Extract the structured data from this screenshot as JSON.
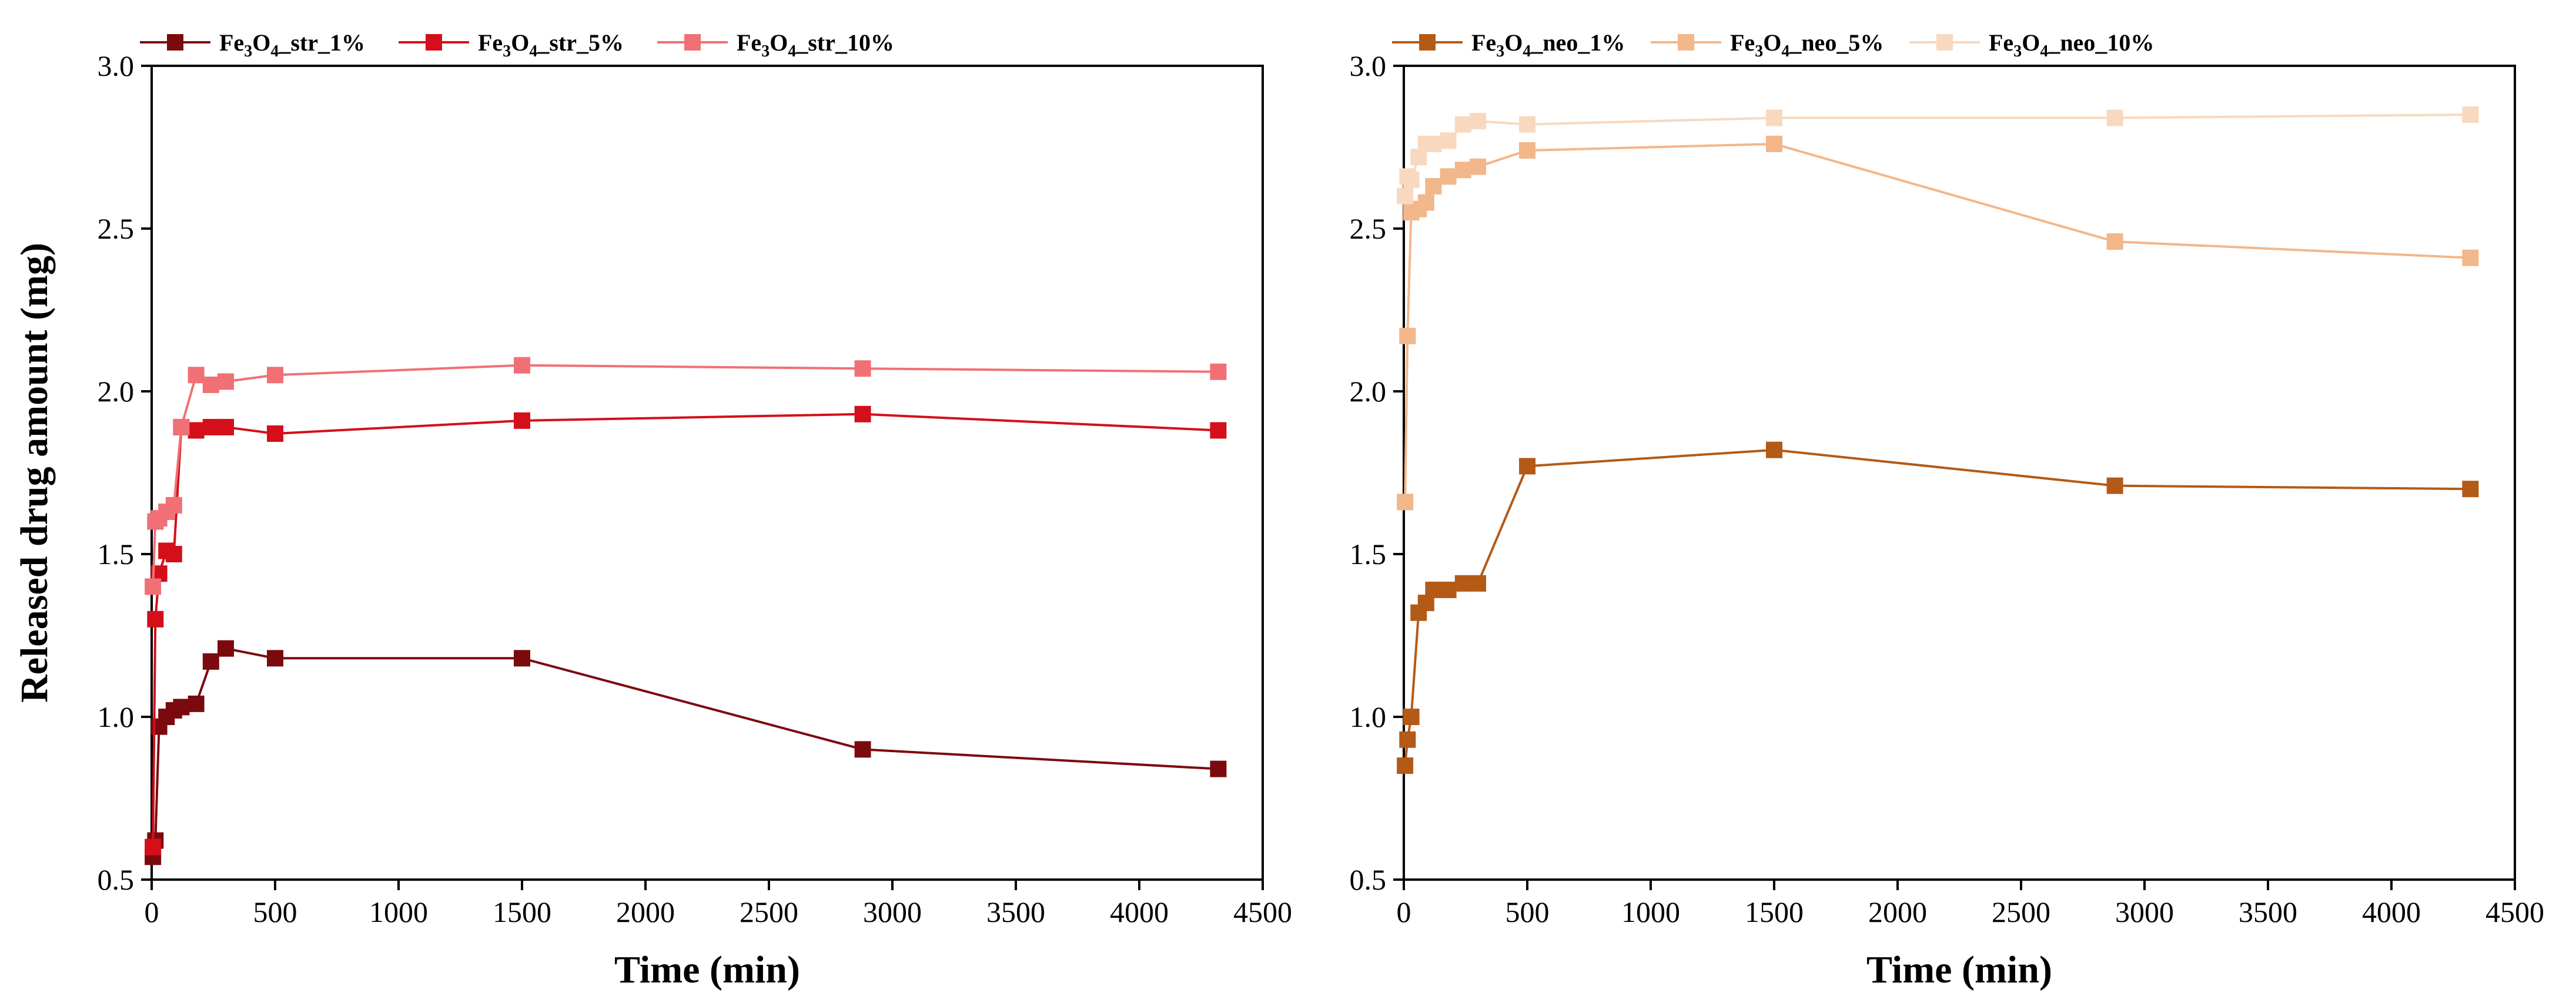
{
  "chart_data": [
    {
      "type": "line",
      "panel": "left",
      "xlabel": "Time (min)",
      "ylabel": "Released drug amount (mg)",
      "xlim": [
        0,
        4500
      ],
      "ylim": [
        0.5,
        3.0
      ],
      "xticks": [
        "0",
        "500",
        "1000",
        "1500",
        "2000",
        "2500",
        "3000",
        "3500",
        "4000",
        "4500"
      ],
      "yticks": [
        "0.5",
        "1.0",
        "1.5",
        "2.0",
        "2.5",
        "3.0"
      ],
      "legend_position": "top",
      "series": [
        {
          "name": "Fe3O4_str_1%",
          "label_main": "Fe",
          "label_sub1": "3",
          "label_mid": "O",
          "label_sub2": "4",
          "label_tail": "_str_1%",
          "color": "#7b0a0f",
          "x": [
            5,
            15,
            30,
            60,
            90,
            120,
            180,
            240,
            300,
            500,
            1500,
            2880,
            4320
          ],
          "y": [
            0.57,
            0.62,
            0.97,
            1.0,
            1.02,
            1.03,
            1.04,
            1.17,
            1.21,
            1.18,
            1.18,
            0.9,
            0.84
          ]
        },
        {
          "name": "Fe3O4_str_5%",
          "label_main": "Fe",
          "label_sub1": "3",
          "label_mid": "O",
          "label_sub2": "4",
          "label_tail": "_str_5%",
          "color": "#d40f1a",
          "x": [
            5,
            15,
            30,
            60,
            90,
            120,
            180,
            240,
            300,
            500,
            1500,
            2880,
            4320
          ],
          "y": [
            0.6,
            1.3,
            1.44,
            1.51,
            1.5,
            1.89,
            1.88,
            1.89,
            1.89,
            1.87,
            1.91,
            1.93,
            1.88
          ]
        },
        {
          "name": "Fe3O4_str_10%",
          "label_main": "Fe",
          "label_sub1": "3",
          "label_mid": "O",
          "label_sub2": "4",
          "label_tail": "_str_10%",
          "color": "#f07076",
          "x": [
            5,
            15,
            30,
            60,
            90,
            120,
            180,
            240,
            300,
            500,
            1500,
            2880,
            4320
          ],
          "y": [
            1.4,
            1.6,
            1.61,
            1.63,
            1.65,
            1.89,
            2.05,
            2.02,
            2.03,
            2.05,
            2.08,
            2.07,
            2.06
          ]
        }
      ]
    },
    {
      "type": "line",
      "panel": "right",
      "xlabel": "Time (min)",
      "ylabel": "",
      "xlim": [
        0,
        4500
      ],
      "ylim": [
        0.5,
        3.0
      ],
      "xticks": [
        "0",
        "500",
        "1000",
        "1500",
        "2000",
        "2500",
        "3000",
        "3500",
        "4000",
        "4500"
      ],
      "yticks": [
        "0.5",
        "1.0",
        "1.5",
        "2.0",
        "2.5",
        "3.0"
      ],
      "legend_position": "top",
      "series": [
        {
          "name": "Fe3O4_neo_1%",
          "label_main": "Fe",
          "label_sub1": "3",
          "label_mid": "O",
          "label_sub2": "4",
          "label_tail": "_neo_1%",
          "color": "#b35a17",
          "x": [
            5,
            15,
            30,
            60,
            90,
            120,
            180,
            240,
            300,
            500,
            1500,
            2880,
            4320
          ],
          "y": [
            0.85,
            0.93,
            1.0,
            1.32,
            1.35,
            1.39,
            1.39,
            1.41,
            1.41,
            1.77,
            1.82,
            1.71,
            1.7
          ]
        },
        {
          "name": "Fe3O4_neo_5%",
          "label_main": "Fe",
          "label_sub1": "3",
          "label_mid": "O",
          "label_sub2": "4",
          "label_tail": "_neo_5%",
          "color": "#f2b78a",
          "x": [
            5,
            15,
            30,
            60,
            90,
            120,
            180,
            240,
            300,
            500,
            1500,
            2880,
            4320
          ],
          "y": [
            1.66,
            2.17,
            2.55,
            2.56,
            2.58,
            2.63,
            2.66,
            2.68,
            2.69,
            2.74,
            2.76,
            2.46,
            2.41
          ]
        },
        {
          "name": "Fe3O4_neo_10%",
          "label_main": "Fe",
          "label_sub1": "3",
          "label_mid": "O",
          "label_sub2": "4",
          "label_tail": "_neo_10%",
          "color": "#f8d9bf",
          "x": [
            5,
            15,
            30,
            60,
            90,
            120,
            180,
            240,
            300,
            500,
            1500,
            2880,
            4320
          ],
          "y": [
            2.6,
            2.66,
            2.65,
            2.72,
            2.76,
            2.76,
            2.77,
            2.82,
            2.83,
            2.82,
            2.84,
            2.84,
            2.85
          ]
        }
      ]
    }
  ]
}
